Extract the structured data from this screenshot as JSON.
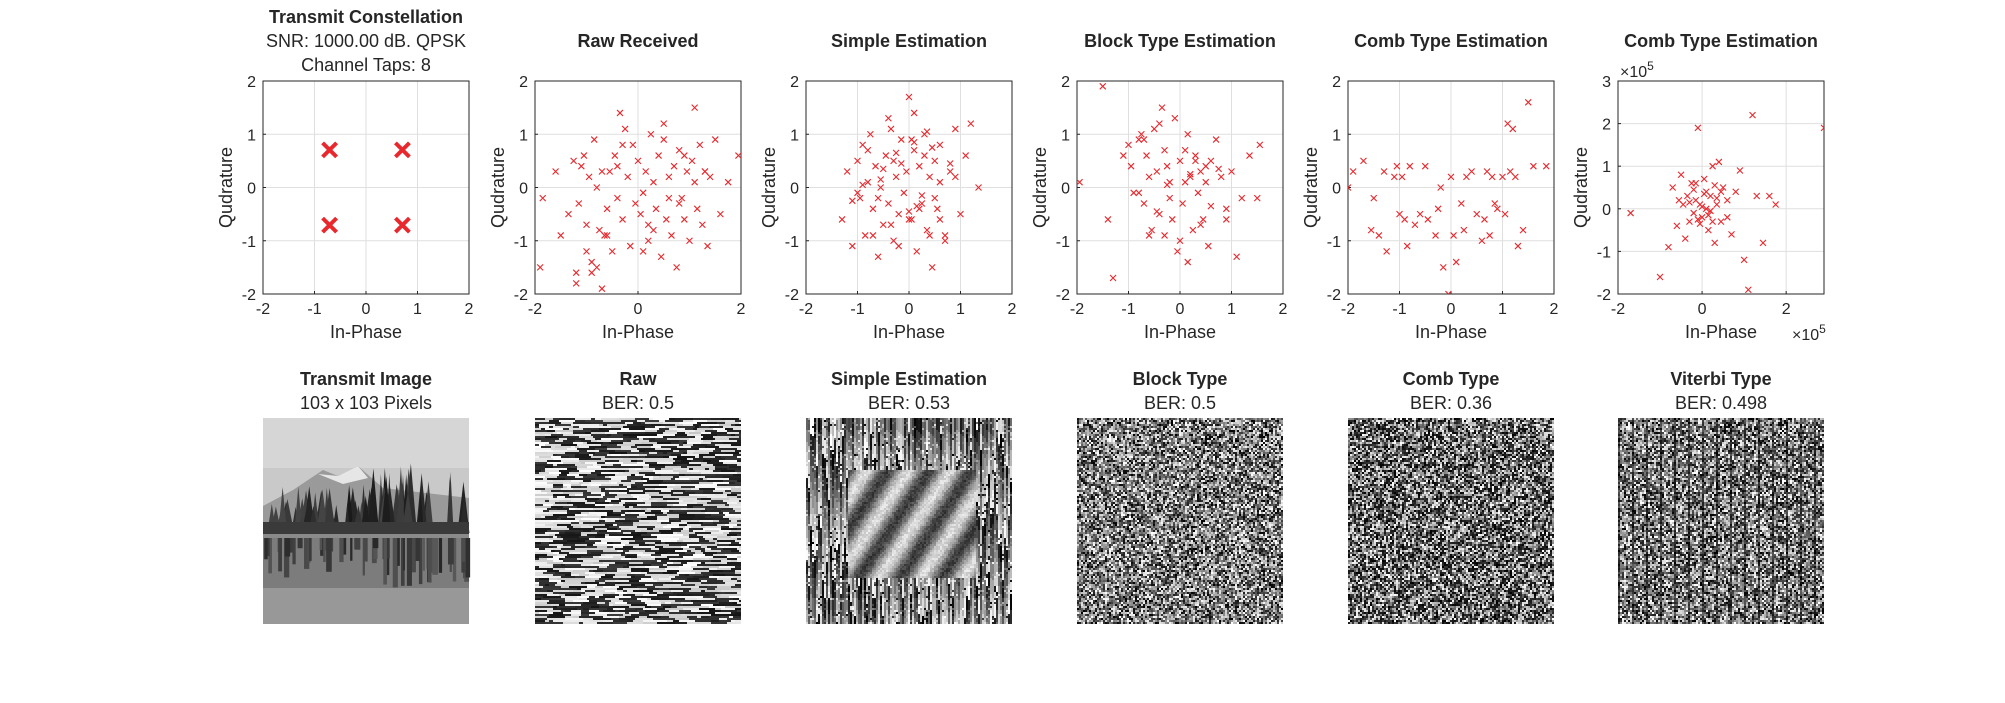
{
  "figure": {
    "background": "#ffffff",
    "marker_color": "#e8282d"
  },
  "chart_data": [
    {
      "type": "scatter",
      "title": "Transmit Constellation",
      "subtitle_lines": [
        "SNR: 1000.00 dB. QPSK",
        "Channel Taps: 8"
      ],
      "xlabel": "In-Phase",
      "ylabel": "Qudrature",
      "xlim": [
        -2,
        2
      ],
      "ylim": [
        -2,
        2
      ],
      "xticks": [
        -2,
        -1,
        0,
        1,
        2
      ],
      "yticks": [
        -2,
        -1,
        0,
        1,
        2
      ],
      "grid": true,
      "marker": "x",
      "marker_size": "large",
      "series": [
        {
          "x": [
            -0.707,
            0.707,
            -0.707,
            0.707
          ],
          "y": [
            0.707,
            0.707,
            -0.707,
            -0.707
          ]
        }
      ]
    },
    {
      "type": "scatter",
      "title": "Raw Received",
      "xlabel": "In-Phase",
      "ylabel": "Qudrature",
      "xlim": [
        -2,
        2
      ],
      "ylim": [
        -2,
        2
      ],
      "xticks": [
        -2,
        0,
        2
      ],
      "yticks": [
        -2,
        -1,
        0,
        1,
        2
      ],
      "grid": true,
      "marker": "x",
      "marker_size": "small",
      "series": [
        {
          "x": [
            -1.9,
            -1.85,
            -1.6,
            -1.5,
            -1.35,
            -1.25,
            -1.2,
            -1.15,
            -1.1,
            -1.05,
            -1.0,
            -1.0,
            -0.95,
            -0.9,
            -0.85,
            -0.8,
            -0.75,
            -0.7,
            -0.7,
            -0.65,
            -0.6,
            -0.55,
            -0.5,
            -0.45,
            -0.4,
            -0.35,
            -0.3,
            -0.25,
            -0.2,
            -0.15,
            -0.1,
            -0.05,
            0.0,
            0.05,
            0.1,
            0.15,
            0.2,
            0.25,
            0.3,
            0.35,
            0.4,
            0.45,
            0.5,
            0.55,
            0.6,
            0.65,
            0.7,
            0.75,
            0.8,
            0.85,
            0.9,
            0.95,
            1.0,
            1.05,
            1.1,
            1.15,
            1.2,
            1.25,
            1.3,
            1.35,
            1.4,
            1.5,
            1.6,
            1.75,
            1.95,
            -0.9,
            -0.6,
            -0.3,
            0.2,
            0.5,
            0.8,
            1.1,
            -1.2,
            -0.4,
            0.3,
            0.9,
            -0.8,
            0.1,
            0.6,
            1.3
          ],
          "y": [
            -1.5,
            -0.2,
            0.3,
            -0.9,
            -0.5,
            0.5,
            -1.8,
            -0.3,
            0.4,
            0.6,
            -1.2,
            -0.7,
            0.2,
            -1.6,
            0.9,
            -1.5,
            -0.8,
            -1.9,
            0.3,
            -0.9,
            -0.4,
            0.3,
            -1.2,
            0.6,
            -0.2,
            1.4,
            -0.6,
            1.1,
            0.2,
            -1.1,
            0.8,
            -0.3,
            0.5,
            -0.5,
            -0.1,
            0.3,
            -0.7,
            1.0,
            0.1,
            -0.4,
            0.6,
            -1.3,
            0.9,
            -0.6,
            0.2,
            -0.9,
            0.4,
            -1.5,
            0.7,
            -0.2,
            -0.6,
            0.3,
            -1.0,
            0.5,
            1.5,
            -0.4,
            0.8,
            -0.7,
            0.3,
            -1.1,
            0.2,
            0.9,
            -0.5,
            0.1,
            0.6,
            -1.4,
            -0.9,
            0.8,
            -1.0,
            1.2,
            -0.3,
            0.1,
            -1.6,
            0.4,
            -0.8,
            0.6,
            0.0,
            -1.2,
            -0.2,
            0.3
          ]
        }
      ]
    },
    {
      "type": "scatter",
      "title": "Simple Estimation",
      "xlabel": "In-Phase",
      "ylabel": "Qudrature",
      "xlim": [
        -2,
        2
      ],
      "ylim": [
        -2,
        2
      ],
      "xticks": [
        -2,
        -1,
        0,
        1,
        2
      ],
      "yticks": [
        -2,
        -1,
        0,
        1,
        2
      ],
      "grid": true,
      "marker": "x",
      "marker_size": "small",
      "series": [
        {
          "x": [
            -1.3,
            -1.2,
            -1.1,
            -1.0,
            -0.95,
            -0.9,
            -0.85,
            -0.8,
            -0.75,
            -0.7,
            -0.65,
            -0.6,
            -0.55,
            -0.5,
            -0.45,
            -0.4,
            -0.35,
            -0.3,
            -0.25,
            -0.2,
            -0.15,
            -0.1,
            -0.05,
            0.0,
            0.05,
            0.1,
            0.15,
            0.2,
            0.25,
            0.3,
            0.35,
            0.4,
            0.45,
            0.5,
            0.55,
            0.6,
            0.7,
            0.8,
            0.9,
            1.0,
            1.1,
            1.2,
            1.35,
            -0.6,
            -0.3,
            0.1,
            0.4,
            -0.8,
            0.2,
            0.6,
            -0.4,
            0.0,
            0.3,
            -0.2,
            0.5,
            -0.7,
            0.9,
            -1.0,
            0.05,
            -0.5,
            0.25,
            0.7,
            -0.15,
            0.15,
            -0.9,
            0.45,
            -0.35,
            0.8,
            -1.1,
            0.0,
            0.35,
            -0.55,
            0.6,
            -0.25,
            0.1
          ],
          "y": [
            -0.6,
            0.3,
            -1.1,
            0.5,
            -0.2,
            0.8,
            -0.9,
            0.1,
            1.0,
            -0.4,
            0.4,
            -1.3,
            0.0,
            -0.7,
            0.6,
            -0.3,
            1.1,
            -1.0,
            0.2,
            -0.5,
            0.9,
            -0.1,
            0.3,
            1.7,
            -0.6,
            0.7,
            -1.2,
            0.4,
            -0.3,
            1.0,
            -0.8,
            0.2,
            -1.5,
            0.5,
            -0.4,
            0.8,
            -0.9,
            0.3,
            1.1,
            -0.5,
            0.6,
            1.2,
            0.0,
            -0.2,
            0.5,
            1.4,
            -0.9,
            0.7,
            -0.4,
            0.1,
            1.3,
            -0.6,
            0.6,
            -1.1,
            -0.2,
            -0.9,
            0.2,
            -0.1,
            0.9,
            0.35,
            -0.15,
            -1.0,
            0.45,
            -0.35,
            0.05,
            0.75,
            -0.7,
            0.45,
            -0.25,
            -0.45,
            1.05,
            0.15,
            -0.6,
            0.65,
            0.85
          ]
        }
      ]
    },
    {
      "type": "scatter",
      "title": "Block Type Estimation",
      "xlabel": "In-Phase",
      "ylabel": "Qudrature",
      "xlim": [
        -2,
        2
      ],
      "ylim": [
        -2,
        2
      ],
      "xticks": [
        -2,
        -1,
        0,
        1,
        2
      ],
      "yticks": [
        -2,
        -1,
        0,
        1,
        2
      ],
      "grid": true,
      "marker": "x",
      "marker_size": "small",
      "series": [
        {
          "x": [
            -1.95,
            -1.5,
            -1.3,
            -1.4,
            -1.1,
            -0.95,
            -0.9,
            -0.8,
            -0.75,
            -0.7,
            -0.65,
            -0.6,
            -0.55,
            -0.5,
            -0.45,
            -0.4,
            -0.35,
            -0.3,
            -0.25,
            -0.2,
            -0.15,
            -0.1,
            -0.05,
            0.0,
            0.05,
            0.1,
            0.15,
            0.2,
            0.25,
            0.3,
            0.35,
            0.4,
            0.45,
            0.5,
            0.55,
            0.6,
            0.7,
            0.8,
            0.9,
            1.0,
            1.1,
            1.2,
            1.35,
            1.5,
            1.55,
            -0.6,
            -0.3,
            0.1,
            0.4,
            -0.8,
            0.2,
            0.6,
            -0.4,
            0.0,
            0.3,
            -0.2,
            0.5,
            -0.7,
            0.9,
            -1.0,
            0.15,
            -0.45,
            0.75,
            -0.25
          ],
          "y": [
            0.1,
            1.9,
            -1.7,
            -0.6,
            0.6,
            0.4,
            -0.1,
            0.9,
            1.0,
            -0.3,
            0.6,
            0.2,
            -0.8,
            1.1,
            0.3,
            -0.5,
            1.5,
            -0.9,
            0.4,
            0.1,
            -0.6,
            1.3,
            -1.2,
            0.5,
            -0.3,
            0.7,
            -1.4,
            0.2,
            -0.8,
            0.5,
            -0.1,
            0.3,
            -0.6,
            0.1,
            -1.1,
            0.5,
            0.9,
            0.2,
            -0.4,
            0.3,
            -1.3,
            -0.2,
            0.6,
            -0.2,
            0.8,
            -0.9,
            0.7,
            0.1,
            -0.7,
            -0.1,
            0.25,
            -0.35,
            1.2,
            -1.0,
            0.6,
            -0.2,
            0.4,
            0.9,
            -0.6,
            0.8,
            1.0,
            -0.45,
            0.35,
            0.05
          ]
        }
      ]
    },
    {
      "type": "scatter",
      "title": "Comb Type Estimation",
      "xlabel": "In-Phase",
      "ylabel": "Qudrature",
      "xlim": [
        -2,
        2
      ],
      "ylim": [
        -2,
        2
      ],
      "xticks": [
        -2,
        -1,
        0,
        1,
        2
      ],
      "yticks": [
        -2,
        -1,
        0,
        1,
        2
      ],
      "grid": true,
      "marker": "x",
      "marker_size": "small",
      "series": [
        {
          "x": [
            -2.0,
            -1.9,
            -1.7,
            -1.55,
            -1.5,
            -1.3,
            -1.25,
            -1.1,
            -1.05,
            -1.0,
            -0.95,
            -0.85,
            -0.8,
            -0.7,
            -0.6,
            -0.5,
            -0.45,
            -0.3,
            -0.25,
            -0.2,
            -0.15,
            -0.05,
            0.0,
            0.05,
            0.1,
            0.2,
            0.3,
            0.4,
            0.5,
            0.6,
            0.65,
            0.7,
            0.75,
            0.85,
            0.9,
            1.0,
            1.05,
            1.1,
            1.15,
            1.2,
            1.25,
            1.3,
            1.4,
            1.5,
            1.6,
            1.85,
            -1.4,
            -0.9,
            0.25,
            0.8
          ],
          "y": [
            0.0,
            0.3,
            0.5,
            -0.8,
            -0.2,
            0.3,
            -1.2,
            0.2,
            0.4,
            -0.5,
            0.2,
            -1.1,
            0.4,
            -0.7,
            -0.5,
            0.4,
            -0.6,
            -0.9,
            -0.4,
            0.0,
            -1.5,
            -2.0,
            0.2,
            -0.9,
            -1.4,
            -0.3,
            0.2,
            0.3,
            -0.5,
            -1.0,
            -0.6,
            0.3,
            -0.9,
            -0.3,
            -0.4,
            0.2,
            -0.5,
            1.2,
            0.3,
            1.1,
            0.2,
            -1.1,
            -0.8,
            1.6,
            0.4,
            0.4,
            -0.9,
            -0.6,
            -0.8,
            0.2
          ]
        }
      ]
    },
    {
      "type": "scatter",
      "title": "Comb Type Estimation",
      "xlabel": "In-Phase",
      "ylabel": "Qudrature",
      "x_exponent_label": "×10",
      "x_exponent_power": "5",
      "y_exponent_label": "×10",
      "y_exponent_power": "5",
      "xlim": [
        -2,
        2.9
      ],
      "ylim": [
        -2,
        3
      ],
      "xticks": [
        -2,
        0,
        2
      ],
      "yticks": [
        -2,
        -1,
        0,
        1,
        2,
        3
      ],
      "grid": true,
      "marker": "x",
      "marker_size": "small",
      "series": [
        {
          "x": [
            -1.7,
            -1.0,
            -0.8,
            -0.7,
            -0.6,
            -0.5,
            -0.45,
            -0.4,
            -0.35,
            -0.3,
            -0.25,
            -0.2,
            -0.15,
            -0.1,
            -0.05,
            0.0,
            0.05,
            0.1,
            0.15,
            0.2,
            0.25,
            0.3,
            0.35,
            0.4,
            0.45,
            0.5,
            0.6,
            0.7,
            0.8,
            0.9,
            1.0,
            1.1,
            1.2,
            1.3,
            1.45,
            1.6,
            1.75,
            2.9,
            -0.3,
            -0.1,
            0.05,
            0.2,
            0.35,
            -0.2,
            0.0,
            0.15,
            0.3,
            -0.05,
            0.1,
            0.25,
            -0.15,
            0.45,
            -0.55,
            0.6
          ],
          "y": [
            -0.1,
            -1.6,
            -0.9,
            0.5,
            -0.4,
            0.8,
            0.1,
            -0.7,
            0.3,
            -0.3,
            0.6,
            -0.1,
            0.2,
            1.9,
            0.1,
            -0.2,
            0.7,
            0.4,
            -0.5,
            0.3,
            1.0,
            -0.8,
            0.1,
            1.1,
            -0.3,
            0.5,
            0.2,
            -0.6,
            0.4,
            0.9,
            -1.2,
            -1.9,
            2.2,
            0.3,
            -0.8,
            0.3,
            0.1,
            1.9,
            0.15,
            -0.25,
            0.35,
            -0.05,
            0.25,
            0.45,
            0.05,
            -0.15,
            0.55,
            -0.35,
            0.0,
            -0.3,
            0.6,
            0.4,
            0.2,
            -0.2
          ]
        }
      ]
    },
    {
      "type": "image",
      "title": "Transmit Image",
      "subtitle": "103 x 103 Pixels",
      "style": "grayscale landscape: pale sky, dark forest on mountain, lake reflection"
    },
    {
      "type": "image",
      "title": "Raw",
      "subtitle": "BER: 0.5",
      "style": "horizontal streak noise"
    },
    {
      "type": "image",
      "title": "Simple Estimation",
      "subtitle": "BER: 0.53",
      "style": "vertical block noise"
    },
    {
      "type": "image",
      "title": "Block Type",
      "subtitle": "BER: 0.5",
      "style": "fine random noise"
    },
    {
      "type": "image",
      "title": "Comb Type",
      "subtitle": "BER: 0.36",
      "style": "random noise with faint structure"
    },
    {
      "type": "image",
      "title": "Viterbi Type",
      "subtitle": "BER: 0.498",
      "style": "random noise with vertical streaks"
    }
  ]
}
